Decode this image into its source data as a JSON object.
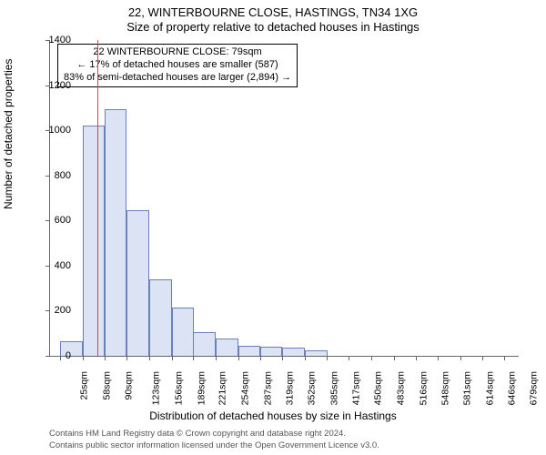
{
  "titles": {
    "line1": "22, WINTERBOURNE CLOSE, HASTINGS, TN34 1XG",
    "line2": "Size of property relative to detached houses in Hastings"
  },
  "axes": {
    "ylabel": "Number of detached properties",
    "xlabel": "Distribution of detached houses by size in Hastings",
    "ylim": [
      0,
      1400
    ],
    "ytick_step": 200,
    "ytick_labels": [
      "0",
      "200",
      "400",
      "600",
      "800",
      "1000",
      "1200",
      "1400"
    ],
    "xticks_sqm": [
      25,
      58,
      90,
      123,
      156,
      189,
      221,
      254,
      287,
      319,
      352,
      385,
      417,
      450,
      483,
      516,
      548,
      581,
      614,
      646,
      679
    ],
    "x_range_sqm": [
      10,
      700
    ],
    "label_fontsize": 12,
    "tick_fontsize": 11
  },
  "chart": {
    "type": "histogram",
    "bar_fill": "#dbe3f4",
    "bar_border": "#6a80b8",
    "background": "#ffffff",
    "axis_color": "#666666",
    "bar_width_sqm": 33,
    "bars": [
      {
        "left_sqm": 25,
        "count": 65
      },
      {
        "left_sqm": 58,
        "count": 1020
      },
      {
        "left_sqm": 90,
        "count": 1095
      },
      {
        "left_sqm": 123,
        "count": 645
      },
      {
        "left_sqm": 156,
        "count": 340
      },
      {
        "left_sqm": 189,
        "count": 215
      },
      {
        "left_sqm": 221,
        "count": 105
      },
      {
        "left_sqm": 254,
        "count": 75
      },
      {
        "left_sqm": 287,
        "count": 45
      },
      {
        "left_sqm": 319,
        "count": 40
      },
      {
        "left_sqm": 352,
        "count": 35
      },
      {
        "left_sqm": 385,
        "count": 25
      }
    ]
  },
  "marker": {
    "sqm": 79,
    "color": "#e04040"
  },
  "annotation": {
    "line1": "22 WINTERBOURNE CLOSE: 79sqm",
    "line2": "← 17% of detached houses are smaller (587)",
    "line3": "83% of semi-detached houses are larger (2,894) →",
    "border": "#000000",
    "bg": "#ffffff",
    "fontsize": 11
  },
  "footer": {
    "line1": "Contains HM Land Registry data © Crown copyright and database right 2024.",
    "line2": "Contains public sector information licensed under the Open Government Licence v3.0.",
    "color": "#555555",
    "fontsize": 9.5
  }
}
